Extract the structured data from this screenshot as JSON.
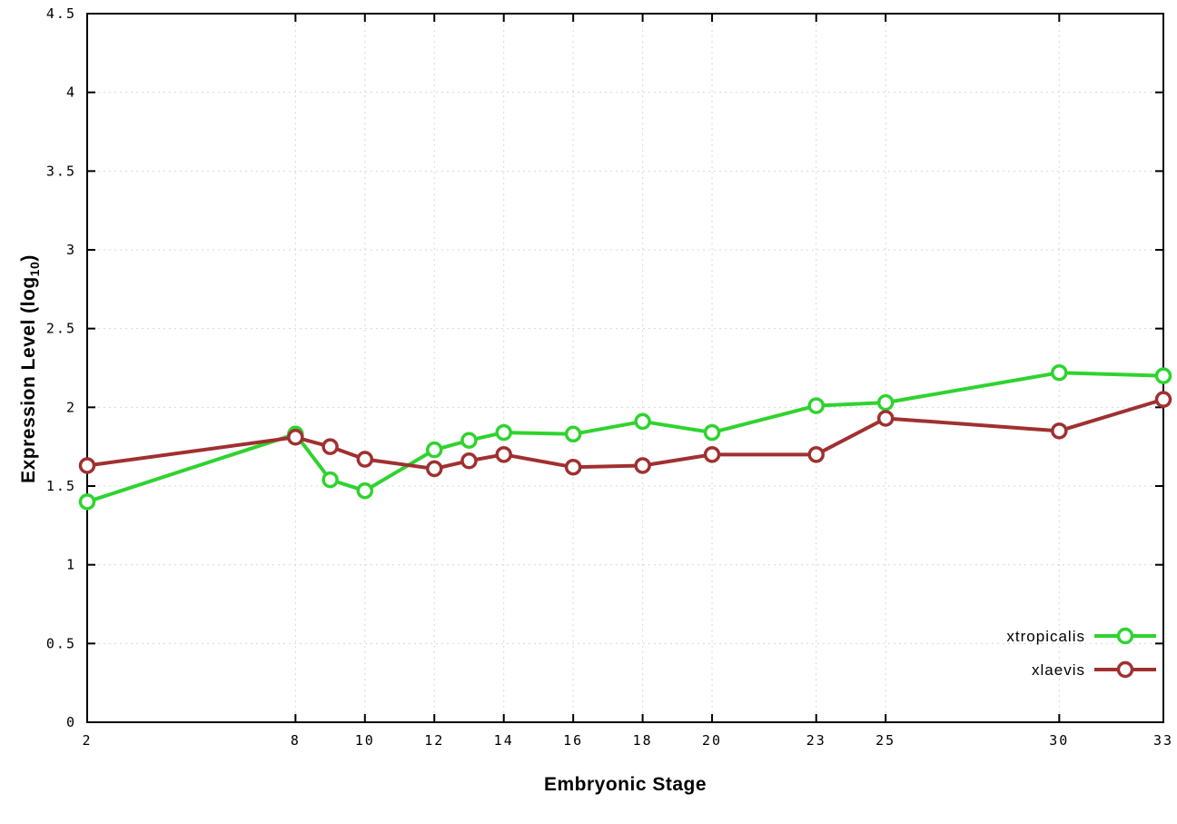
{
  "chart_data": {
    "type": "line",
    "title": "",
    "xlabel": "Embryonic Stage",
    "ylabel": "Expression Level (log10)",
    "ylabel_parts": {
      "main": "Expression Level (log",
      "sub": "10",
      "close": ")"
    },
    "xlim": [
      2,
      33
    ],
    "ylim": [
      0,
      4.5
    ],
    "grid": true,
    "grid_style": "dotted",
    "legend": {
      "position": "bottom-right",
      "entries": [
        "xtropicalis",
        "xlaevis"
      ]
    },
    "marker": "open-circle",
    "x": [
      2,
      8,
      9,
      10,
      12,
      13,
      14,
      16,
      18,
      20,
      23,
      25,
      30,
      33
    ],
    "xticks": {
      "values": [
        2,
        8,
        10,
        12,
        14,
        16,
        18,
        20,
        23,
        25,
        30,
        33
      ],
      "labels": [
        "2",
        "8",
        "10",
        "12",
        "14",
        "16",
        "18",
        "20",
        "23",
        "25",
        "30",
        "33"
      ]
    },
    "yticks": {
      "values": [
        0,
        0.5,
        1,
        1.5,
        2,
        2.5,
        3,
        3.5,
        4,
        4.5
      ],
      "labels": [
        "0",
        "0.5",
        "1",
        "1.5",
        "2",
        "2.5",
        "3",
        "3.5",
        "4",
        "4.5"
      ]
    },
    "series": [
      {
        "name": "xtropicalis",
        "color": "#2fd32f",
        "values": [
          1.4,
          1.83,
          1.54,
          1.47,
          1.73,
          1.79,
          1.84,
          1.83,
          1.91,
          1.84,
          2.01,
          2.03,
          2.22,
          2.2
        ]
      },
      {
        "name": "xlaevis",
        "color": "#a03030",
        "values": [
          1.63,
          1.81,
          1.75,
          1.67,
          1.61,
          1.66,
          1.7,
          1.62,
          1.63,
          1.7,
          1.7,
          1.93,
          1.85,
          2.05
        ]
      }
    ]
  },
  "colors": {
    "background": "#ffffff",
    "grid": "#d8d8d8",
    "axis": "#000000",
    "marker_fill": "#ffffff"
  }
}
